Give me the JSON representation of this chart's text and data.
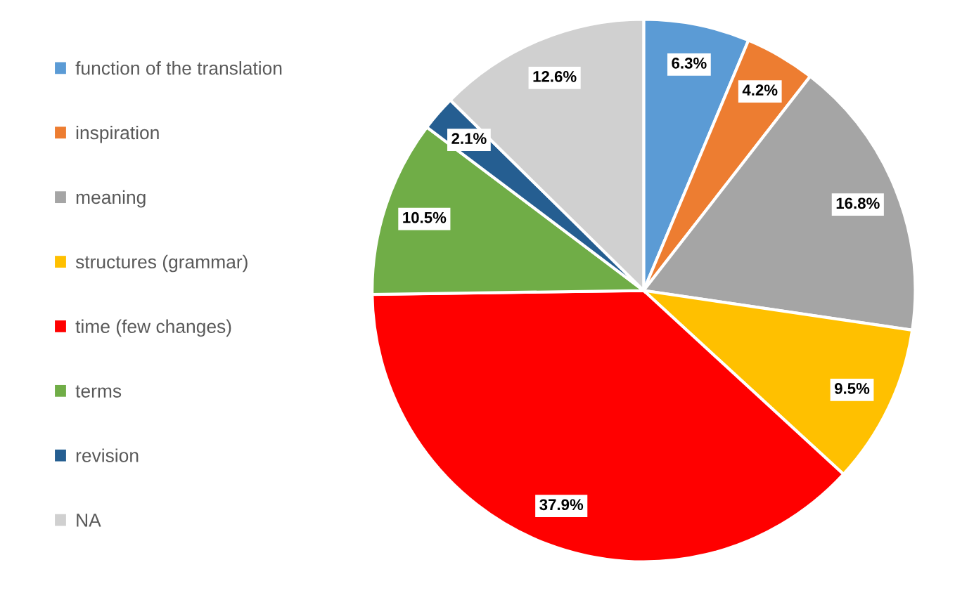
{
  "chart_data": {
    "type": "pie",
    "categories": [
      "function of the translation",
      "inspiration",
      "meaning",
      "structures (grammar)",
      "time (few changes)",
      "terms",
      "revision",
      "NA"
    ],
    "values": [
      6.3,
      4.2,
      16.8,
      9.5,
      37.9,
      10.5,
      2.1,
      12.6
    ],
    "colors": [
      "#5b9bd5",
      "#ed7d31",
      "#a5a5a5",
      "#ffc000",
      "#ff0000",
      "#70ad47",
      "#255e91",
      "#d0d0d0"
    ],
    "value_labels": [
      "6.3%",
      "4.2%",
      "16.8%",
      "9.5%",
      "37.9%",
      "10.5%",
      "2.1%",
      "12.6%"
    ],
    "legend": "left"
  }
}
